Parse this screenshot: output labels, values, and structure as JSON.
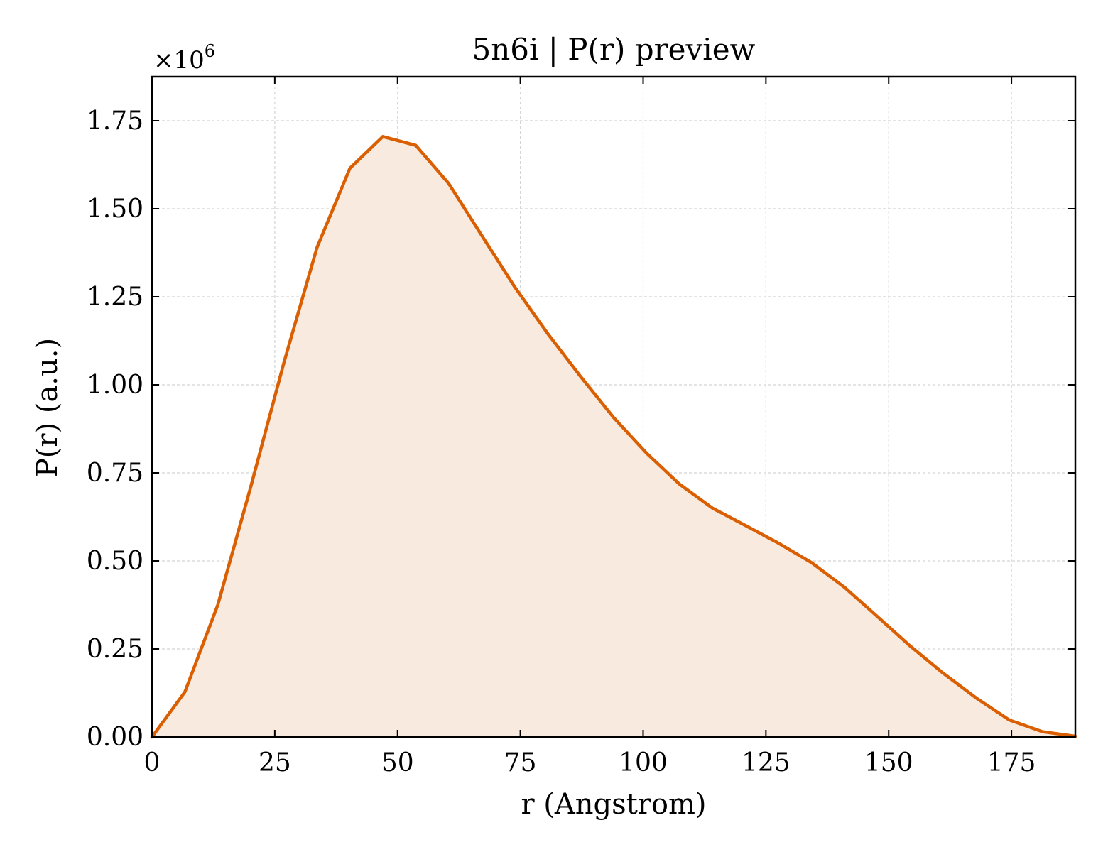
{
  "chart_data": {
    "type": "area",
    "title": "5n6i | P(r) preview",
    "xlabel": "r (Angstrom)",
    "ylabel": "P(r) (a.u.)",
    "offset_label": {
      "base": "×10",
      "exponent": "6"
    },
    "xlim": [
      0,
      188
    ],
    "ylim": [
      0,
      1.875
    ],
    "xticks": [
      0,
      25,
      50,
      75,
      100,
      125,
      150,
      175
    ],
    "xtick_labels": [
      "0",
      "25",
      "50",
      "75",
      "100",
      "125",
      "150",
      "175"
    ],
    "yticks": [
      0,
      0.25,
      0.5,
      0.75,
      1.0,
      1.25,
      1.5,
      1.75
    ],
    "ytick_labels": [
      "0.00",
      "0.25",
      "0.50",
      "0.75",
      "1.00",
      "1.25",
      "1.50",
      "1.75"
    ],
    "y_multiplier": 1000000,
    "grid": true,
    "line_color": "#d95f02",
    "fill_color": "#f8eade",
    "series": [
      {
        "x": [
          0,
          6.7,
          13.4,
          20.1,
          26.9,
          33.6,
          40.3,
          47.0,
          53.7,
          60.4,
          67.1,
          73.9,
          80.6,
          87.3,
          94.0,
          100.7,
          107.4,
          114.1,
          120.9,
          127.6,
          134.3,
          141.0,
          147.7,
          154.4,
          161.1,
          167.9,
          174.6,
          181.3,
          188.0
        ],
        "y": [
          0.0,
          0.128,
          0.375,
          0.71,
          1.065,
          1.39,
          1.615,
          1.705,
          1.68,
          1.572,
          1.425,
          1.277,
          1.145,
          1.023,
          0.907,
          0.806,
          0.718,
          0.65,
          0.6,
          0.55,
          0.495,
          0.425,
          0.342,
          0.258,
          0.181,
          0.11,
          0.048,
          0.015,
          0.002
        ]
      }
    ]
  }
}
